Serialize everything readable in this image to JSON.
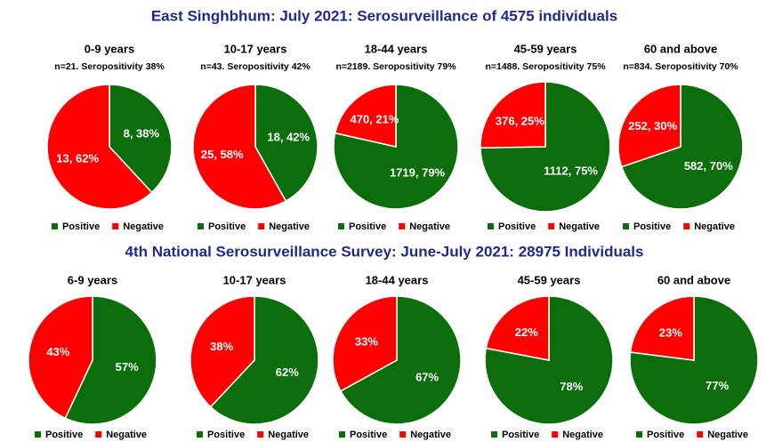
{
  "headings": [
    "East Singhbhum: July 2021: Serosurveillance of 4575 individuals",
    "4th National Serosurveillance Survey: June-July 2021: 28975 Individuals"
  ],
  "chart_data": [
    {
      "type": "pie",
      "title": "0-9 years",
      "subtitle": "n=21. Seropositivity 38%",
      "categories": [
        "Positive",
        "Negative"
      ],
      "values": [
        8,
        13
      ],
      "value_labels": [
        "8, 38%",
        "13, 62%"
      ],
      "colors": [
        "#0b6e0b",
        "#ff0000"
      ]
    },
    {
      "type": "pie",
      "title": "10-17 years",
      "subtitle": "n=43. Seropositivity 42%",
      "categories": [
        "Positive",
        "Negative"
      ],
      "values": [
        18,
        25
      ],
      "value_labels": [
        "18, 42%",
        "25, 58%"
      ],
      "colors": [
        "#0b6e0b",
        "#ff0000"
      ]
    },
    {
      "type": "pie",
      "title": "18-44 years",
      "subtitle": "n=2189. Seropositivity 79%",
      "categories": [
        "Positive",
        "Negative"
      ],
      "values": [
        1719,
        470
      ],
      "value_labels": [
        "1719, 79%",
        "470, 21%"
      ],
      "colors": [
        "#0b6e0b",
        "#ff0000"
      ]
    },
    {
      "type": "pie",
      "title": "45-59 years",
      "subtitle": "n=1488. Seropositivity 75%",
      "categories": [
        "Positive",
        "Negative"
      ],
      "values": [
        1112,
        376
      ],
      "value_labels": [
        "1112, 75%",
        "376, 25%"
      ],
      "colors": [
        "#0b6e0b",
        "#ff0000"
      ]
    },
    {
      "type": "pie",
      "title": "60 and above",
      "subtitle": "n=834. Seropositivity 70%",
      "categories": [
        "Positive",
        "Negative"
      ],
      "values": [
        582,
        252
      ],
      "value_labels": [
        "582, 70%",
        "252, 30%"
      ],
      "colors": [
        "#0b6e0b",
        "#ff0000"
      ]
    },
    {
      "type": "pie",
      "title": "6-9 years",
      "categories": [
        "Positive",
        "Negative"
      ],
      "values": [
        57,
        43
      ],
      "value_labels": [
        "57%",
        "43%"
      ],
      "colors": [
        "#0b6e0b",
        "#ff0000"
      ]
    },
    {
      "type": "pie",
      "title": "10-17 years",
      "categories": [
        "Positive",
        "Negative"
      ],
      "values": [
        62,
        38
      ],
      "value_labels": [
        "62%",
        "38%"
      ],
      "colors": [
        "#0b6e0b",
        "#ff0000"
      ]
    },
    {
      "type": "pie",
      "title": "18-44 years",
      "categories": [
        "Positive",
        "Negative"
      ],
      "values": [
        67,
        33
      ],
      "value_labels": [
        "67%",
        "33%"
      ],
      "colors": [
        "#0b6e0b",
        "#ff0000"
      ]
    },
    {
      "type": "pie",
      "title": "45-59 years",
      "categories": [
        "Positive",
        "Negative"
      ],
      "values": [
        78,
        22
      ],
      "value_labels": [
        "78%",
        "22%"
      ],
      "colors": [
        "#0b6e0b",
        "#ff0000"
      ]
    },
    {
      "type": "pie",
      "title": "60 and above",
      "categories": [
        "Positive",
        "Negative"
      ],
      "values": [
        77,
        23
      ],
      "value_labels": [
        "77%",
        "23%"
      ],
      "colors": [
        "#0b6e0b",
        "#ff0000"
      ]
    }
  ]
}
